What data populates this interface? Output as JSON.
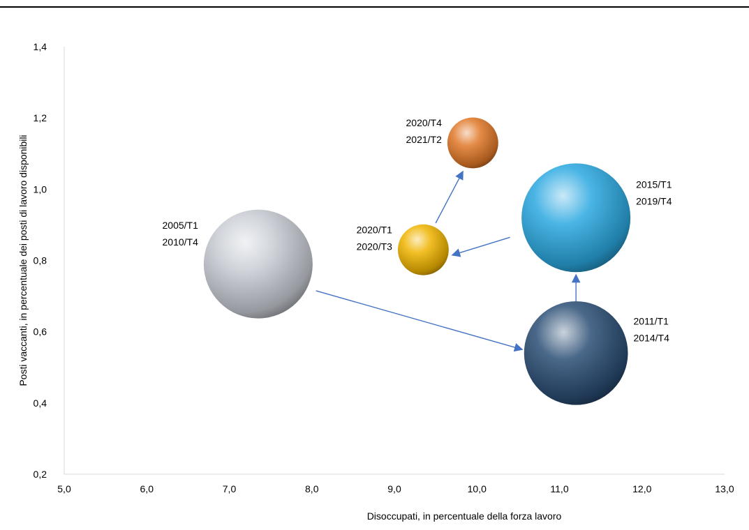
{
  "chart_data": {
    "type": "bubble",
    "xlabel": "Disoccupati, in percentuale della forza lavoro",
    "ylabel": "Posti vaccanti, in percentuale dei posti di lavoro disponibili",
    "xlim": [
      5.0,
      13.0
    ],
    "ylim": [
      0.2,
      1.4
    ],
    "x_ticks": [
      "5,0",
      "6,0",
      "7,0",
      "8,0",
      "9,0",
      "10,0",
      "11,0",
      "12,0",
      "13,0"
    ],
    "y_ticks": [
      "0,2",
      "0,4",
      "0,6",
      "0,8",
      "1,0",
      "1,2",
      "1,4"
    ],
    "grid": false,
    "legend": "none",
    "points": [
      {
        "label": [
          "2005/T1",
          "2010/T4"
        ],
        "x": 7.35,
        "y": 0.79,
        "size": 5.5,
        "color": "#c8ccd4"
      },
      {
        "label": [
          "2011/T1",
          "2014/T4"
        ],
        "x": 11.2,
        "y": 0.54,
        "size": 5.0,
        "color": "#2a4d74"
      },
      {
        "label": [
          "2015/T1",
          "2019/T4"
        ],
        "x": 11.2,
        "y": 0.92,
        "size": 5.5,
        "color": "#2aa8e0"
      },
      {
        "label": [
          "2020/T1",
          "2020/T3"
        ],
        "x": 9.35,
        "y": 0.83,
        "size": 1.2,
        "color": "#f0b400"
      },
      {
        "label": [
          "2020/T4",
          "2021/T2"
        ],
        "x": 9.95,
        "y": 1.13,
        "size": 1.2,
        "color": "#e07828"
      }
    ],
    "arrows": [
      {
        "from": [
          8.05,
          0.715
        ],
        "to": [
          10.55,
          0.55
        ]
      },
      {
        "from": [
          11.2,
          0.685
        ],
        "to": [
          11.2,
          0.76
        ]
      },
      {
        "from": [
          10.4,
          0.865
        ],
        "to": [
          9.7,
          0.815
        ]
      },
      {
        "from": [
          9.5,
          0.905
        ],
        "to": [
          9.83,
          1.05
        ]
      }
    ],
    "arrow_color": "#4472c4"
  }
}
